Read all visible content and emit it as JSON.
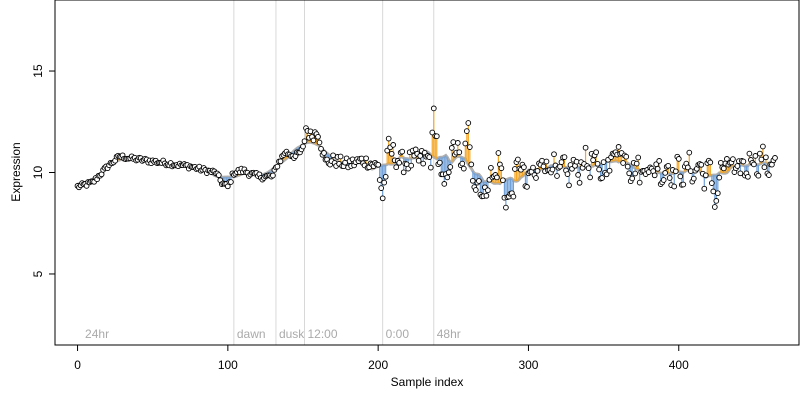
{
  "chart_data": {
    "type": "scatter",
    "title": "",
    "xlabel": "Sample index",
    "ylabel": "Expression",
    "xlim": [
      -15,
      480
    ],
    "ylim": [
      1.5,
      18.5
    ],
    "xticks": [
      0,
      100,
      200,
      300,
      400
    ],
    "yticks": [
      5,
      10,
      15
    ],
    "event_markers": [
      {
        "x": 104,
        "label": "dawn"
      },
      {
        "x": 132,
        "label": "dusk"
      },
      {
        "x": 151,
        "label": "12:00"
      },
      {
        "x": 203,
        "label": "0:00"
      },
      {
        "x": 237,
        "label": "48hr"
      }
    ],
    "corner_label": {
      "x": 3,
      "label": "24hr"
    },
    "colors": {
      "line": "#b0b0b0",
      "above": "#f5a623",
      "below": "#6fa0d8",
      "point_fill": "#ffffff",
      "point_stroke": "#000000",
      "event_line": "#d8d8d8"
    },
    "anchor_points": {
      "x": [
        0,
        10,
        20,
        28,
        35,
        45,
        55,
        65,
        75,
        85,
        92,
        96,
        100,
        104,
        110,
        120,
        130,
        133,
        138,
        145,
        150,
        152,
        155,
        160,
        165,
        170,
        180,
        190,
        200,
        203,
        207,
        215,
        225,
        235,
        237,
        240,
        245,
        250,
        255,
        260,
        265,
        270,
        275,
        280,
        285,
        288,
        292,
        300,
        310,
        320,
        330,
        340,
        350,
        360,
        370,
        380,
        390,
        400,
        410,
        420,
        425,
        430,
        440,
        450,
        460
      ],
      "y": [
        9.3,
        9.5,
        10.3,
        10.8,
        10.7,
        10.6,
        10.5,
        10.4,
        10.3,
        10.1,
        10.0,
        9.5,
        9.3,
        10.0,
        10.1,
        9.8,
        9.8,
        10.4,
        11.0,
        10.8,
        11.1,
        12.2,
        11.8,
        12.0,
        10.5,
        10.6,
        10.4,
        10.6,
        10.3,
        8.8,
        11.2,
        10.5,
        10.6,
        10.7,
        13.0,
        10.4,
        9.3,
        11.5,
        10.2,
        11.8,
        9.4,
        9.0,
        9.7,
        10.4,
        9.0,
        8.3,
        10.5,
        9.5,
        10.6,
        10.0,
        10.1,
        10.6,
        10.0,
        11.3,
        10.1,
        10.2,
        10.1,
        10.0,
        10.2,
        10.0,
        8.8,
        10.5,
        10.0,
        10.7,
        10.4
      ]
    },
    "series": [
      {
        "count": 465,
        "smoothing_window": 9
      }
    ]
  }
}
